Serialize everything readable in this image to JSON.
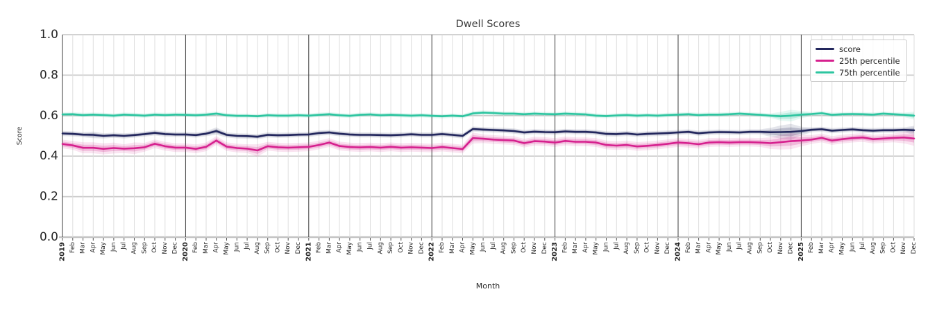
{
  "chart_data": {
    "type": "line",
    "title": "Dwell Scores",
    "xlabel": "Month",
    "ylabel": "Score",
    "ylim": [
      0.0,
      1.0
    ],
    "yticks": [
      0.0,
      0.2,
      0.4,
      0.6,
      0.8,
      1.0
    ],
    "grid": true,
    "legend_position": "upper right",
    "x_tick_labels": [
      "2019",
      "Feb",
      "Mar",
      "Apr",
      "May",
      "Jun",
      "Jul",
      "Aug",
      "Sep",
      "Oct",
      "Nov",
      "Dec",
      "2020",
      "Feb",
      "Mar",
      "Apr",
      "May",
      "Jun",
      "Jul",
      "Aug",
      "Sep",
      "Oct",
      "Nov",
      "Dec",
      "2021",
      "Feb",
      "Mar",
      "Apr",
      "May",
      "Jun",
      "Jul",
      "Aug",
      "Sep",
      "Oct",
      "Nov",
      "Dec",
      "2022",
      "Feb",
      "Mar",
      "Apr",
      "May",
      "Jun",
      "Jul",
      "Aug",
      "Sep",
      "Oct",
      "Nov",
      "Dec",
      "2023",
      "Feb",
      "Mar",
      "Apr",
      "May",
      "Jun",
      "Jul",
      "Aug",
      "Sep",
      "Oct",
      "Nov",
      "Dec",
      "2024",
      "Feb",
      "Mar",
      "Apr",
      "May",
      "Jun",
      "Jul",
      "Aug",
      "Sep",
      "Oct",
      "Nov",
      "Dec",
      "2025",
      "Feb",
      "Mar",
      "Apr",
      "May",
      "Jun",
      "Jul",
      "Aug",
      "Sep",
      "Oct",
      "Nov",
      "Dec"
    ],
    "series": [
      {
        "name": "score",
        "color": "#23275d",
        "band_default": 0.007,
        "band_overrides": {
          "3": 0.009,
          "15": 0.01,
          "69": 0.012,
          "70": 0.018,
          "71": 0.022,
          "72": 0.012,
          "83": 0.012
        },
        "values": [
          0.512,
          0.51,
          0.506,
          0.505,
          0.5,
          0.503,
          0.5,
          0.504,
          0.509,
          0.515,
          0.509,
          0.507,
          0.507,
          0.504,
          0.511,
          0.524,
          0.505,
          0.5,
          0.499,
          0.496,
          0.505,
          0.503,
          0.504,
          0.506,
          0.507,
          0.514,
          0.517,
          0.511,
          0.507,
          0.505,
          0.505,
          0.504,
          0.503,
          0.505,
          0.508,
          0.505,
          0.505,
          0.509,
          0.505,
          0.5,
          0.534,
          0.531,
          0.529,
          0.527,
          0.524,
          0.517,
          0.521,
          0.519,
          0.518,
          0.522,
          0.52,
          0.52,
          0.517,
          0.51,
          0.509,
          0.512,
          0.507,
          0.51,
          0.512,
          0.514,
          0.517,
          0.52,
          0.513,
          0.517,
          0.519,
          0.518,
          0.517,
          0.52,
          0.52,
          0.518,
          0.519,
          0.52,
          0.524,
          0.53,
          0.533,
          0.526,
          0.529,
          0.532,
          0.528,
          0.526,
          0.528,
          0.528,
          0.53,
          0.528
        ]
      },
      {
        "name": "25th percentile",
        "color": "#d6208e",
        "band_default": 0.012,
        "band_overrides": {
          "2": 0.015,
          "3": 0.015,
          "4": 0.015,
          "5": 0.015,
          "7": 0.016,
          "19": 0.017,
          "40": 0.015,
          "69": 0.016,
          "70": 0.02,
          "71": 0.022,
          "72": 0.016,
          "82": 0.016,
          "83": 0.02
        },
        "values": [
          0.46,
          0.453,
          0.441,
          0.441,
          0.436,
          0.44,
          0.437,
          0.439,
          0.444,
          0.461,
          0.449,
          0.442,
          0.442,
          0.436,
          0.446,
          0.477,
          0.447,
          0.44,
          0.437,
          0.428,
          0.449,
          0.444,
          0.442,
          0.444,
          0.446,
          0.455,
          0.467,
          0.45,
          0.445,
          0.443,
          0.445,
          0.442,
          0.446,
          0.442,
          0.444,
          0.442,
          0.44,
          0.445,
          0.44,
          0.435,
          0.489,
          0.486,
          0.482,
          0.479,
          0.477,
          0.464,
          0.474,
          0.472,
          0.467,
          0.475,
          0.471,
          0.471,
          0.467,
          0.455,
          0.452,
          0.455,
          0.448,
          0.451,
          0.455,
          0.461,
          0.467,
          0.464,
          0.459,
          0.467,
          0.469,
          0.467,
          0.469,
          0.469,
          0.467,
          0.464,
          0.469,
          0.474,
          0.477,
          0.482,
          0.49,
          0.477,
          0.484,
          0.489,
          0.492,
          0.484,
          0.487,
          0.49,
          0.492,
          0.487
        ]
      },
      {
        "name": "75th percentile",
        "color": "#2dc5a0",
        "band_default": 0.006,
        "band_overrides": {
          "70": 0.012,
          "71": 0.016,
          "72": 0.01,
          "83": 0.011
        },
        "values": [
          0.606,
          0.607,
          0.603,
          0.605,
          0.603,
          0.6,
          0.605,
          0.603,
          0.6,
          0.605,
          0.603,
          0.605,
          0.604,
          0.602,
          0.605,
          0.61,
          0.602,
          0.599,
          0.599,
          0.597,
          0.602,
          0.6,
          0.6,
          0.602,
          0.6,
          0.604,
          0.607,
          0.602,
          0.599,
          0.604,
          0.606,
          0.602,
          0.604,
          0.602,
          0.6,
          0.602,
          0.599,
          0.597,
          0.6,
          0.597,
          0.611,
          0.615,
          0.613,
          0.61,
          0.61,
          0.607,
          0.61,
          0.608,
          0.607,
          0.61,
          0.608,
          0.606,
          0.6,
          0.598,
          0.601,
          0.603,
          0.6,
          0.602,
          0.6,
          0.603,
          0.605,
          0.607,
          0.603,
          0.605,
          0.605,
          0.607,
          0.61,
          0.607,
          0.604,
          0.6,
          0.597,
          0.6,
          0.605,
          0.608,
          0.612,
          0.604,
          0.607,
          0.608,
          0.607,
          0.605,
          0.61,
          0.607,
          0.604,
          0.6
        ]
      }
    ]
  }
}
